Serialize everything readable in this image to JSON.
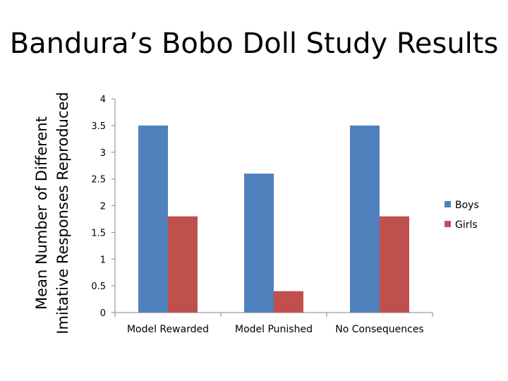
{
  "chart_data": {
    "type": "bar",
    "title": "Bandura’s Bobo Doll Study Results",
    "ylabel_lines": [
      "Mean Number of Different",
      "Imitative Responses Reproduced"
    ],
    "xlabel": "",
    "categories": [
      "Model Rewarded",
      "Model Punished",
      "No Consequences"
    ],
    "series": [
      {
        "name": "Boys",
        "values": [
          3.5,
          2.6,
          3.5
        ],
        "color": "#4f81bd"
      },
      {
        "name": "Girls",
        "values": [
          1.8,
          0.4,
          1.8
        ],
        "color": "#c0504d"
      }
    ],
    "ylim": [
      0,
      4
    ],
    "yticks": [
      "0",
      "0.5",
      "1",
      "1.5",
      "2",
      "2.5",
      "3",
      "3.5",
      "4"
    ],
    "grid": false,
    "legend_position": "right"
  }
}
